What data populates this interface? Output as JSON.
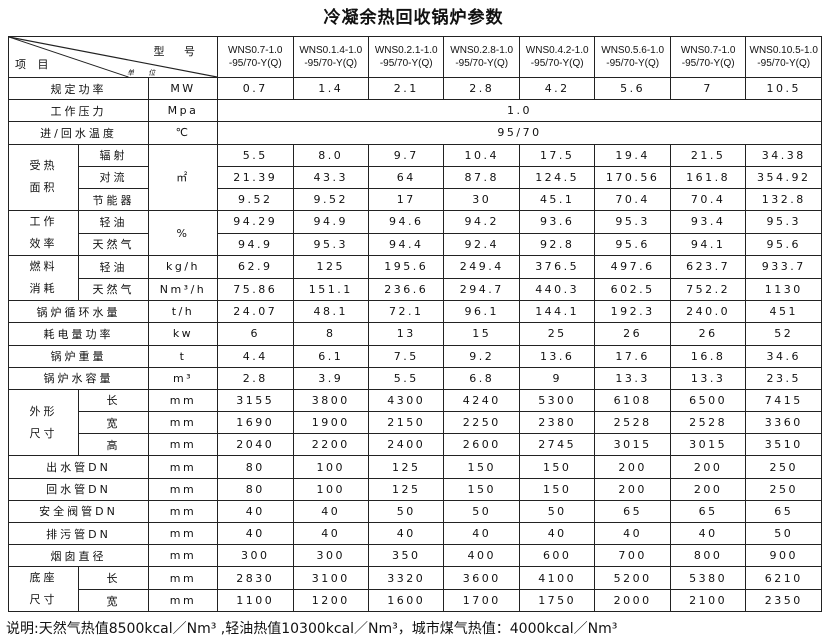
{
  "title": "冷凝余热回收锅炉参数",
  "header": {
    "model_label": "型 号",
    "item_label": "项 目",
    "unit_label": "单 位",
    "models": [
      [
        "WNS0.7-1.0",
        "-95/70-Y(Q)"
      ],
      [
        "WNS0.1.4-1.0",
        "-95/70-Y(Q)"
      ],
      [
        "WNS0.2.1-1.0",
        "-95/70-Y(Q)"
      ],
      [
        "WNS0.2.8-1.0",
        "-95/70-Y(Q)"
      ],
      [
        "WNS0.4.2-1.0",
        "-95/70-Y(Q)"
      ],
      [
        "WNS0.5.6-1.0",
        "-95/70-Y(Q)"
      ],
      [
        "WNS0.7-1.0",
        "-95/70-Y(Q)"
      ],
      [
        "WNS0.10.5-1.0",
        "-95/70-Y(Q)"
      ]
    ]
  },
  "rows": [
    {
      "label": "规定功率",
      "unit": "MW",
      "values": [
        "0.7",
        "1.4",
        "2.1",
        "2.8",
        "4.2",
        "5.6",
        "7",
        "10.5"
      ]
    },
    {
      "label": "工作压力",
      "unit": "Mpa",
      "merged": "1.0"
    },
    {
      "label": "进/回水温度",
      "unit": "℃",
      "merged": "95/70"
    },
    {
      "group": "受热面积",
      "group_span": 3,
      "sub": "辐射",
      "unit": "㎡",
      "unit_span": 3,
      "values": [
        "5.5",
        "8.0",
        "9.7",
        "10.4",
        "17.5",
        "19.4",
        "21.5",
        "34.38"
      ]
    },
    {
      "sub": "对流",
      "values": [
        "21.39",
        "43.3",
        "64",
        "87.8",
        "124.5",
        "170.56",
        "161.8",
        "354.92"
      ]
    },
    {
      "sub": "节能器",
      "values": [
        "9.52",
        "9.52",
        "17",
        "30",
        "45.1",
        "70.4",
        "70.4",
        "132.8"
      ]
    },
    {
      "group": "工作效率",
      "group_span": 2,
      "sub": "轻油",
      "unit": "%",
      "unit_span": 2,
      "values": [
        "94.29",
        "94.9",
        "94.6",
        "94.2",
        "93.6",
        "95.3",
        "93.4",
        "95.3"
      ]
    },
    {
      "sub": "天然气",
      "values": [
        "94.9",
        "95.3",
        "94.4",
        "92.4",
        "92.8",
        "95.6",
        "94.1",
        "95.6"
      ]
    },
    {
      "group": "燃料消耗",
      "group_span": 2,
      "sub": "轻油",
      "unit": "kg/h",
      "values": [
        "62.9",
        "125",
        "195.6",
        "249.4",
        "376.5",
        "497.6",
        "623.7",
        "933.7"
      ]
    },
    {
      "sub": "天然气",
      "unit": "Nm³/h",
      "values": [
        "75.86",
        "151.1",
        "236.6",
        "294.7",
        "440.3",
        "602.5",
        "752.2",
        "1130"
      ]
    },
    {
      "label": "锅炉循环水量",
      "unit": "t/h",
      "values": [
        "24.07",
        "48.1",
        "72.1",
        "96.1",
        "144.1",
        "192.3",
        "240.0",
        "451"
      ]
    },
    {
      "label": "耗电量功率",
      "unit": "kw",
      "values": [
        "6",
        "8",
        "13",
        "15",
        "25",
        "26",
        "26",
        "52"
      ]
    },
    {
      "label": "锅炉重量",
      "unit": "t",
      "values": [
        "4.4",
        "6.1",
        "7.5",
        "9.2",
        "13.6",
        "17.6",
        "16.8",
        "34.6"
      ]
    },
    {
      "label": "锅炉水容量",
      "unit": "m³",
      "values": [
        "2.8",
        "3.9",
        "5.5",
        "6.8",
        "9",
        "13.3",
        "13.3",
        "23.5"
      ]
    },
    {
      "group": "外形尺寸",
      "group_span": 3,
      "sub": "长",
      "unit": "mm",
      "values": [
        "3155",
        "3800",
        "4300",
        "4240",
        "5300",
        "6108",
        "6500",
        "7415"
      ]
    },
    {
      "sub": "宽",
      "unit": "mm",
      "values": [
        "1690",
        "1900",
        "2150",
        "2250",
        "2380",
        "2528",
        "2528",
        "3360"
      ]
    },
    {
      "sub": "高",
      "unit": "mm",
      "values": [
        "2040",
        "2200",
        "2400",
        "2600",
        "2745",
        "3015",
        "3015",
        "3510"
      ]
    },
    {
      "label": "出水管DN",
      "unit": "mm",
      "values": [
        "80",
        "100",
        "125",
        "150",
        "150",
        "200",
        "200",
        "250"
      ]
    },
    {
      "label": "回水管DN",
      "unit": "mm",
      "values": [
        "80",
        "100",
        "125",
        "150",
        "150",
        "200",
        "200",
        "250"
      ]
    },
    {
      "label": "安全阀管DN",
      "unit": "mm",
      "values": [
        "40",
        "40",
        "50",
        "50",
        "50",
        "65",
        "65",
        "65"
      ]
    },
    {
      "label": "排污管DN",
      "unit": "mm",
      "values": [
        "40",
        "40",
        "40",
        "40",
        "40",
        "40",
        "40",
        "50"
      ]
    },
    {
      "label": "烟囱直径",
      "unit": "mm",
      "values": [
        "300",
        "300",
        "350",
        "400",
        "600",
        "700",
        "800",
        "900"
      ]
    },
    {
      "group": "底座尺寸",
      "group_span": 2,
      "sub": "长",
      "unit": "mm",
      "values": [
        "2830",
        "3100",
        "3320",
        "3600",
        "4100",
        "5200",
        "5380",
        "6210"
      ]
    },
    {
      "sub": "宽",
      "unit": "mm",
      "values": [
        "1100",
        "1200",
        "1600",
        "1700",
        "1750",
        "2000",
        "2100",
        "2350"
      ]
    }
  ],
  "footnote": "说明:天然气热值8500kcal／Nm³ ,轻油热值10300kcal／Nm³，城市煤气热值：4000kcal／Nm³"
}
